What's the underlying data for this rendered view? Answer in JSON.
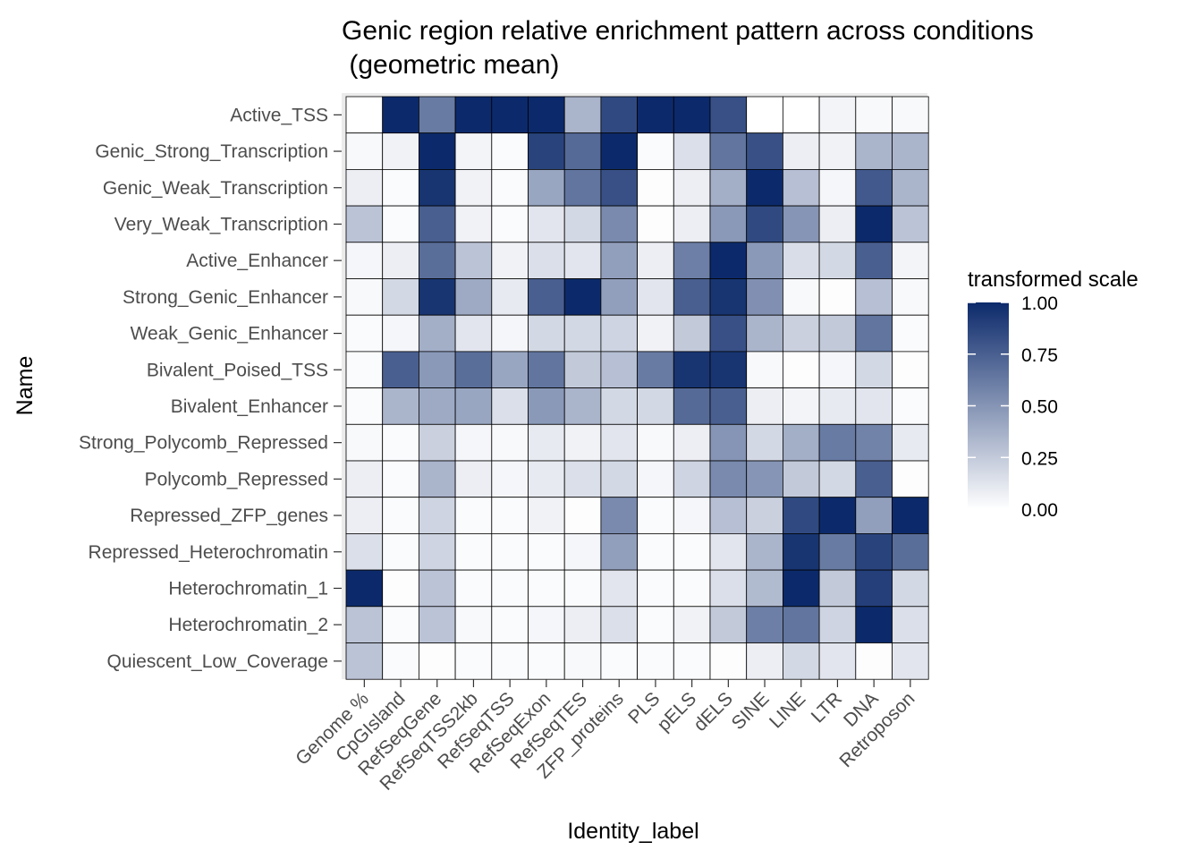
{
  "chart_data": {
    "type": "heatmap",
    "title": [
      "Genic region relative enrichment pattern across conditions",
      " (geometric mean)"
    ],
    "xlabel": "Identity_label",
    "ylabel": "Name",
    "x_categories": [
      "Genome %",
      "CpGIsland",
      "RefSeqGene",
      "RefSeqTSS2kb",
      "RefSeqTSS",
      "RefSeqExon",
      "RefSeqTES",
      "ZFP_proteins",
      "PLS",
      "pELS",
      "dELS",
      "SINE",
      "LINE",
      "LTR",
      "DNA",
      "Retroposon"
    ],
    "y_categories": [
      "Active_TSS",
      "Genic_Strong_Transcription",
      "Genic_Weak_Transcription",
      "Very_Weak_Transcription",
      "Active_Enhancer",
      "Strong_Genic_Enhancer",
      "Weak_Genic_Enhancer",
      "Bivalent_Poised_TSS",
      "Bivalent_Enhancer",
      "Strong_Polycomb_Repressed",
      "Polycomb_Repressed",
      "Repressed_ZFP_genes",
      "Repressed_Heterochromatin",
      "Heterochromatin_1",
      "Heterochromatin_2",
      "Quiescent_Low_Coverage"
    ],
    "values": [
      [
        0.0,
        1.0,
        0.62,
        1.0,
        1.0,
        1.0,
        0.35,
        0.85,
        1.0,
        1.0,
        0.82,
        0.0,
        0.0,
        0.05,
        0.03,
        0.03
      ],
      [
        0.03,
        0.06,
        1.0,
        0.05,
        0.02,
        0.88,
        0.7,
        1.0,
        0.02,
        0.15,
        0.65,
        0.82,
        0.08,
        0.06,
        0.35,
        0.35
      ],
      [
        0.08,
        0.02,
        0.95,
        0.06,
        0.02,
        0.42,
        0.65,
        0.82,
        0.01,
        0.08,
        0.38,
        1.0,
        0.3,
        0.04,
        0.78,
        0.35
      ],
      [
        0.28,
        0.02,
        0.75,
        0.06,
        0.02,
        0.12,
        0.18,
        0.55,
        0.01,
        0.08,
        0.48,
        0.85,
        0.5,
        0.08,
        1.0,
        0.28
      ],
      [
        0.04,
        0.08,
        0.68,
        0.28,
        0.06,
        0.15,
        0.12,
        0.45,
        0.08,
        0.6,
        1.0,
        0.48,
        0.16,
        0.18,
        0.75,
        0.05
      ],
      [
        0.03,
        0.18,
        0.95,
        0.4,
        0.1,
        0.75,
        1.0,
        0.45,
        0.12,
        0.75,
        0.95,
        0.52,
        0.03,
        0.01,
        0.3,
        0.03
      ],
      [
        0.02,
        0.04,
        0.38,
        0.12,
        0.04,
        0.18,
        0.18,
        0.2,
        0.06,
        0.25,
        0.82,
        0.35,
        0.22,
        0.25,
        0.65,
        0.02
      ],
      [
        0.02,
        0.75,
        0.48,
        0.68,
        0.42,
        0.65,
        0.25,
        0.3,
        0.62,
        0.95,
        0.95,
        0.03,
        0.01,
        0.04,
        0.18,
        0.01
      ],
      [
        0.02,
        0.35,
        0.4,
        0.42,
        0.15,
        0.48,
        0.35,
        0.18,
        0.18,
        0.7,
        0.75,
        0.08,
        0.05,
        0.1,
        0.12,
        0.02
      ],
      [
        0.03,
        0.02,
        0.22,
        0.04,
        0.03,
        0.1,
        0.06,
        0.12,
        0.03,
        0.08,
        0.5,
        0.18,
        0.38,
        0.62,
        0.58,
        0.1
      ],
      [
        0.08,
        0.02,
        0.35,
        0.08,
        0.04,
        0.1,
        0.15,
        0.18,
        0.04,
        0.2,
        0.55,
        0.5,
        0.25,
        0.18,
        0.75,
        0.01
      ],
      [
        0.08,
        0.02,
        0.2,
        0.02,
        0.02,
        0.06,
        0.01,
        0.55,
        0.02,
        0.04,
        0.3,
        0.22,
        0.85,
        1.0,
        0.45,
        1.0
      ],
      [
        0.15,
        0.02,
        0.2,
        0.02,
        0.02,
        0.02,
        0.04,
        0.45,
        0.02,
        0.02,
        0.12,
        0.35,
        0.95,
        0.62,
        0.88,
        0.68
      ],
      [
        1.0,
        0.01,
        0.28,
        0.02,
        0.02,
        0.02,
        0.02,
        0.12,
        0.02,
        0.02,
        0.15,
        0.32,
        1.0,
        0.25,
        0.9,
        0.18
      ],
      [
        0.28,
        0.02,
        0.28,
        0.03,
        0.02,
        0.04,
        0.08,
        0.15,
        0.02,
        0.06,
        0.25,
        0.6,
        0.65,
        0.2,
        1.0,
        0.15
      ],
      [
        0.28,
        0.02,
        0.01,
        0.02,
        0.02,
        0.02,
        0.03,
        0.02,
        0.02,
        0.02,
        0.01,
        0.08,
        0.18,
        0.12,
        0.01,
        0.12
      ]
    ],
    "value_range": [
      0,
      1
    ],
    "legend": {
      "title": "transformed scale",
      "ticks": [
        0.0,
        0.25,
        0.5,
        0.75,
        1.0
      ],
      "tick_labels": [
        "0.00",
        "0.25",
        "0.50",
        "0.75",
        "1.00"
      ],
      "low_color": "#ffffff",
      "high_color": "#0c2a6b",
      "placement": "right"
    },
    "panel_background": "#ebebeb",
    "cell_border_color": "#000000"
  }
}
